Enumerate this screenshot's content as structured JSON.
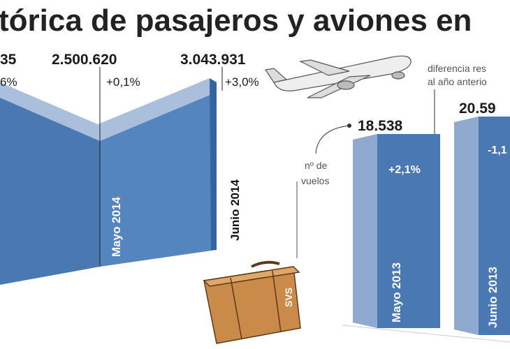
{
  "title": "tórica de pasajeros y aviones en",
  "passengers": {
    "items": [
      {
        "value": "35",
        "change": "6%"
      },
      {
        "value": "2.500.620",
        "change": "+0,1%",
        "label": "Mayo 2014"
      },
      {
        "value": "3.043.931",
        "change": "+3,0%",
        "label": "Junio 2014"
      }
    ]
  },
  "flights": {
    "note": [
      "diferencia res",
      "al año anterio"
    ],
    "unit": [
      "nº de",
      "vuelos"
    ],
    "items": [
      {
        "value": "18.538",
        "change": "+2,1%",
        "label": "Mayo 2013"
      },
      {
        "value": "20.59",
        "change": "-1,1",
        "label": "Junio 2013"
      }
    ]
  },
  "suitcase_label": "SVS"
}
